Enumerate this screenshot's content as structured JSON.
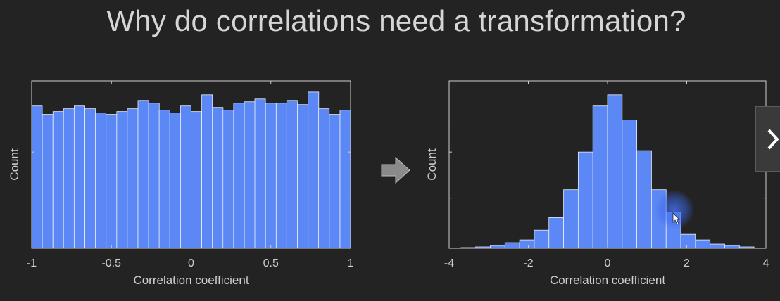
{
  "title": "Why do correlations need a transformation?",
  "colors": {
    "background": "#232323",
    "bar_fill": "#5b88f5",
    "bar_edge": "#e8eeff",
    "axis": "#cfcfcf",
    "text": "#cfcfcf",
    "arrow": "#8a8a8a"
  },
  "icons": {
    "transform_arrow": "right-arrow-icon",
    "next_button": "chevron-right-icon",
    "cursor": "mouse-pointer-icon"
  },
  "chart_data": [
    {
      "type": "bar",
      "xlabel": "Correlation coefficient",
      "ylabel": "Count",
      "xlim": [
        -1,
        1
      ],
      "ylim": [
        0,
        12
      ],
      "xticks": [
        -1,
        -0.5,
        0,
        0.5,
        1
      ],
      "xtick_labels": [
        "-1",
        "-0.5",
        "0",
        "0.5",
        "1"
      ],
      "yticks": [
        3.6,
        6.9,
        9.2
      ],
      "bin_width": 0.0667,
      "x": [
        -0.967,
        -0.9,
        -0.833,
        -0.767,
        -0.7,
        -0.633,
        -0.567,
        -0.5,
        -0.433,
        -0.367,
        -0.3,
        -0.233,
        -0.167,
        -0.1,
        -0.033,
        0.033,
        0.1,
        0.167,
        0.233,
        0.3,
        0.367,
        0.433,
        0.5,
        0.567,
        0.633,
        0.7,
        0.767,
        0.833,
        0.9,
        0.967
      ],
      "values": [
        10.2,
        9.6,
        9.8,
        10.0,
        10.2,
        10.0,
        9.7,
        9.6,
        9.8,
        10.0,
        10.6,
        10.4,
        9.9,
        9.7,
        10.2,
        9.8,
        11.0,
        10.1,
        9.9,
        10.4,
        10.5,
        10.7,
        10.4,
        10.4,
        10.6,
        10.3,
        11.2,
        10.0,
        9.6,
        9.9
      ]
    },
    {
      "type": "bar",
      "xlabel": "Correlation coefficient",
      "ylabel": "Count",
      "xlim": [
        -4,
        4
      ],
      "ylim": [
        0,
        12
      ],
      "xticks": [
        -4,
        -2,
        0,
        2,
        4
      ],
      "xtick_labels": [
        "-4",
        "-2",
        "0",
        "2",
        "4"
      ],
      "yticks": [
        3.6,
        6.9,
        9.2
      ],
      "bin_width": 0.37,
      "x": [
        -3.515,
        -3.145,
        -2.775,
        -2.405,
        -2.035,
        -1.665,
        -1.295,
        -0.925,
        -0.555,
        -0.185,
        0.185,
        0.555,
        0.925,
        1.295,
        1.665,
        2.035,
        2.405,
        2.775,
        3.145,
        3.515
      ],
      "values": [
        0.05,
        0.1,
        0.2,
        0.4,
        0.6,
        1.3,
        2.2,
        4.2,
        6.9,
        10.2,
        11.0,
        9.2,
        7.0,
        4.2,
        2.6,
        1.0,
        0.6,
        0.3,
        0.2,
        0.1
      ]
    }
  ]
}
